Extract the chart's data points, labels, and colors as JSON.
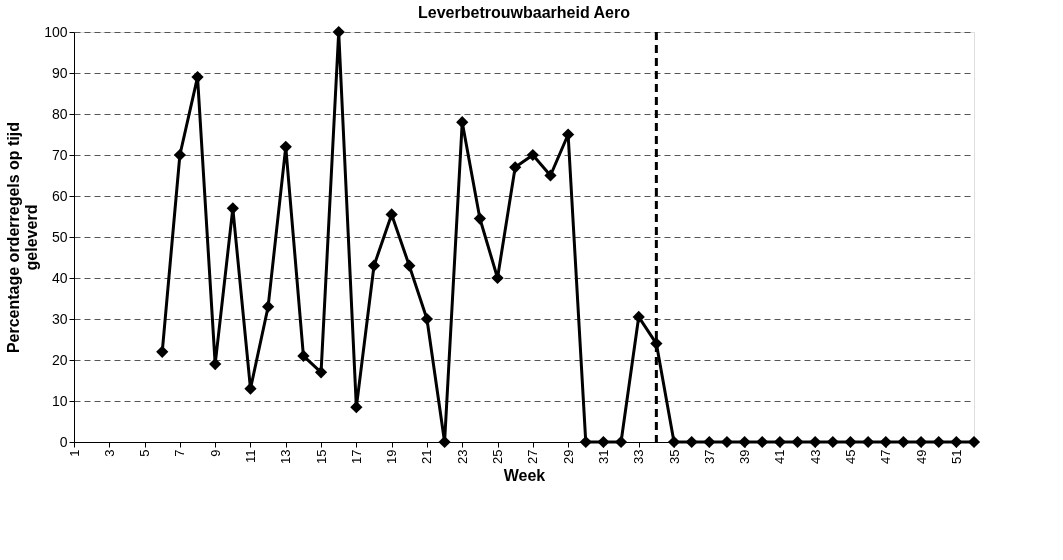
{
  "chart_data": {
    "type": "line",
    "title": "Leverbetrouwbaarheid Aero",
    "xlabel": "Week",
    "ylabel": "Percentage orderregels op tijd geleverd",
    "x": [
      6,
      7,
      8,
      9,
      10,
      11,
      12,
      13,
      14,
      15,
      16,
      17,
      18,
      19,
      20,
      21,
      22,
      23,
      24,
      25,
      26,
      27,
      28,
      29,
      30,
      31,
      32,
      33,
      34,
      35,
      36,
      37,
      38,
      39,
      40,
      41,
      42,
      43,
      44,
      45,
      46,
      47,
      48,
      49,
      50,
      51,
      52
    ],
    "series": [
      {
        "color": "#000000",
        "values": [
          22,
          70,
          89,
          19,
          57,
          13,
          33,
          72,
          21,
          17,
          100,
          8.5,
          43,
          55.5,
          43,
          30,
          0,
          78,
          54.5,
          40,
          67,
          70,
          65,
          75,
          0,
          0,
          0,
          30.5,
          24,
          0,
          0,
          0,
          0,
          0,
          0,
          0,
          0,
          0,
          0,
          0,
          0,
          0,
          0,
          0,
          0,
          0,
          0
        ]
      }
    ],
    "xlim": [
      1,
      52
    ],
    "xticks": [
      1,
      3,
      5,
      7,
      9,
      11,
      13,
      15,
      17,
      19,
      21,
      23,
      25,
      27,
      29,
      31,
      33,
      35,
      37,
      39,
      41,
      43,
      45,
      47,
      49,
      51
    ],
    "ylim": [
      0,
      100
    ],
    "yticks": [
      0,
      10,
      20,
      30,
      40,
      50,
      60,
      70,
      80,
      90,
      100
    ],
    "ref_lines": [
      {
        "axis": "x",
        "value": 34,
        "color": "#000000",
        "line_style": "dashed"
      }
    ],
    "grid": "y",
    "marker": "diamond",
    "line_style": "solid"
  }
}
